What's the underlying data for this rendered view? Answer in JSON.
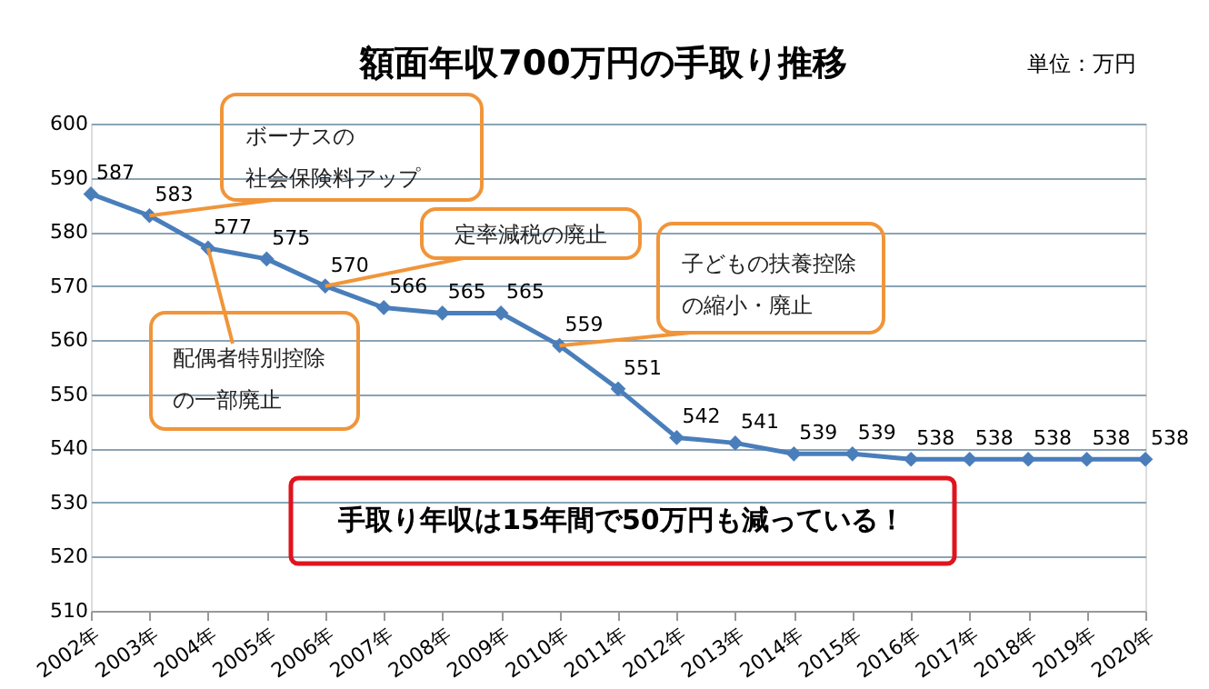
{
  "chart_data": {
    "type": "line",
    "title": "額面年収700万円の手取り推移",
    "categories": [
      "2002年",
      "2003年",
      "2004年",
      "2005年",
      "2006年",
      "2007年",
      "2008年",
      "2009年",
      "2010年",
      "2011年",
      "2012年",
      "2013年",
      "2014年",
      "2015年",
      "2016年",
      "2017年",
      "2018年",
      "2019年",
      "2020年"
    ],
    "series": [
      {
        "color": "#4a7ebb",
        "values": [
          587,
          583,
          577,
          575,
          570,
          566,
          565,
          565,
          559,
          551,
          542,
          541,
          539,
          539,
          538,
          538,
          538,
          538,
          538
        ]
      }
    ],
    "ylim": [
      510,
      600
    ],
    "yticks": [
      510,
      520,
      530,
      540,
      550,
      560,
      570,
      580,
      590,
      600
    ],
    "grid": "y",
    "marker": "diamond",
    "line_style": "solid",
    "data_labels": true,
    "annotations": [
      {
        "text": "ボーナスの社会保険料アップ",
        "x": "2003年",
        "y": 583
      },
      {
        "text": "配偶者特別控除の一部廃止",
        "x": "2004年",
        "y": 577
      },
      {
        "text": "定率減税の廃止",
        "x": "2006年",
        "y": 570
      },
      {
        "text": "子どもの扶養控除の縮小・廃止",
        "x": "2010年",
        "y": 559
      },
      "単位：万円",
      "手取り年収は15年間で50万円も減っている！"
    ]
  }
}
